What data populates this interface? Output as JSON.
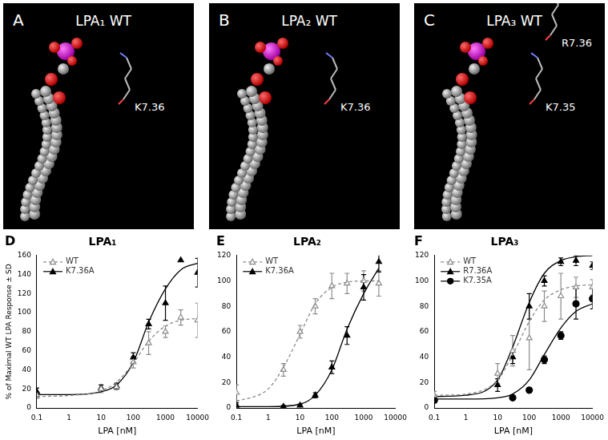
{
  "panels": [
    {
      "letter": "A",
      "title": "LPA₁ WT",
      "residues": [
        "K7.36"
      ]
    },
    {
      "letter": "B",
      "title": "LPA₂ WT",
      "residues": [
        "K7.36"
      ]
    },
    {
      "letter": "C",
      "title": "LPA₃ WT",
      "residues": [
        "K7.35",
        "R7.36"
      ]
    }
  ],
  "chart_data": [
    {
      "type": "line",
      "letter": "D",
      "title": "LPA₁",
      "x_label": "LPA [nM]",
      "y_label": "% of Maximal WT LPA Response ± SD",
      "log": "x",
      "grid": false,
      "legend": "top-left",
      "xlim": [
        0.1,
        10000
      ],
      "xticks": [
        0.1,
        1,
        10,
        100,
        1000,
        10000
      ],
      "ylim": [
        0,
        160
      ],
      "yticks": [
        0,
        20,
        40,
        60,
        80,
        100,
        120,
        140,
        160
      ],
      "series": [
        {
          "name": "WT",
          "color": "#8c8c8c",
          "marker": "triangle-open",
          "line_style": "dashed",
          "x": [
            0.1,
            10,
            30,
            100,
            300,
            1000,
            3000,
            10000
          ],
          "values": [
            13,
            20,
            22,
            48,
            68,
            80,
            95,
            92
          ],
          "error": [
            3,
            4,
            3,
            6,
            12,
            6,
            8,
            18
          ],
          "fit_x": [
            0.1,
            1,
            10,
            30,
            100,
            300,
            1000,
            3000,
            10000
          ],
          "fit": [
            12,
            13,
            18,
            27,
            47,
            70,
            86,
            92,
            94
          ]
        },
        {
          "name": "K7.36A",
          "color": "#000000",
          "marker": "triangle",
          "line_style": "solid",
          "x": [
            0.1,
            10,
            30,
            100,
            300,
            1000,
            3000,
            10000
          ],
          "values": [
            17,
            21,
            23,
            53,
            88,
            110,
            155,
            142
          ],
          "error": [
            4,
            3,
            3,
            5,
            5,
            18,
            0,
            15
          ],
          "fit_x": [
            0.1,
            1,
            10,
            30,
            100,
            300,
            1000,
            3000,
            10000
          ],
          "fit": [
            14,
            14,
            17,
            24,
            48,
            90,
            125,
            145,
            152
          ]
        }
      ]
    },
    {
      "type": "line",
      "letter": "E",
      "title": "LPA₂",
      "x_label": "LPA [nM]",
      "log": "x",
      "grid": false,
      "legend": "top-left",
      "xlim": [
        0.1,
        10000
      ],
      "xticks": [
        0.1,
        1,
        10,
        100,
        1000,
        10000
      ],
      "ylim": [
        0,
        120
      ],
      "yticks": [
        0,
        20,
        40,
        60,
        80,
        100,
        120
      ],
      "series": [
        {
          "name": "WT",
          "color": "#8c8c8c",
          "marker": "triangle-open",
          "line_style": "dashed",
          "x": [
            0.1,
            3,
            10,
            30,
            100,
            300,
            1000,
            3000
          ],
          "values": [
            12,
            30,
            60,
            80,
            96,
            98,
            100,
            98
          ],
          "error": [
            6,
            5,
            5,
            6,
            10,
            8,
            8,
            10
          ],
          "fit_x": [
            0.1,
            1,
            3,
            10,
            30,
            100,
            300,
            1000,
            3000
          ],
          "fit": [
            5,
            15,
            32,
            58,
            82,
            95,
            99,
            100,
            100
          ]
        },
        {
          "name": "K7.36A",
          "color": "#000000",
          "marker": "triangle",
          "line_style": "solid",
          "x": [
            0.1,
            3,
            10,
            30,
            100,
            300,
            1000,
            3000
          ],
          "values": [
            2,
            1,
            2,
            10,
            32,
            57,
            95,
            115
          ],
          "error": [
            2,
            1,
            1,
            2,
            5,
            7,
            10,
            8
          ],
          "fit_x": [
            0.1,
            1,
            10,
            30,
            100,
            300,
            1000,
            3000
          ],
          "fit": [
            1,
            1,
            3,
            10,
            30,
            62,
            90,
            110
          ]
        }
      ]
    },
    {
      "type": "line",
      "letter": "F",
      "title": "LPA₃",
      "x_label": "LPA [nM]",
      "log": "x",
      "grid": false,
      "legend": "top-left",
      "xlim": [
        0.1,
        10000
      ],
      "xticks": [
        0.1,
        1,
        10,
        100,
        1000,
        10000
      ],
      "ylim": [
        0,
        120
      ],
      "yticks": [
        0,
        20,
        40,
        60,
        80,
        100,
        120
      ],
      "series": [
        {
          "name": "WT",
          "color": "#8c8c8c",
          "marker": "triangle-open",
          "line_style": "dashed",
          "x": [
            0.1,
            10,
            30,
            100,
            300,
            1000,
            3000,
            10000
          ],
          "values": [
            10,
            27,
            45,
            55,
            80,
            88,
            95,
            95
          ],
          "error": [
            3,
            8,
            12,
            25,
            12,
            18,
            8,
            6
          ],
          "fit_x": [
            0.1,
            1,
            10,
            30,
            100,
            300,
            1000,
            3000,
            10000
          ],
          "fit": [
            10,
            11,
            22,
            42,
            68,
            85,
            93,
            96,
            97
          ]
        },
        {
          "name": "R7.36A",
          "color": "#000000",
          "marker": "triangle",
          "line_style": "solid",
          "x": [
            0.1,
            10,
            30,
            100,
            300,
            1000,
            3000,
            10000
          ],
          "values": [
            8,
            18,
            40,
            80,
            100,
            115,
            116,
            112
          ],
          "error": [
            2,
            5,
            5,
            10,
            4,
            3,
            4,
            3
          ],
          "fit_x": [
            0.1,
            1,
            10,
            30,
            100,
            300,
            1000,
            3000,
            10000
          ],
          "fit": [
            9,
            10,
            22,
            48,
            83,
            106,
            116,
            119,
            120
          ]
        },
        {
          "name": "K7.35A",
          "color": "#000000",
          "marker": "circle",
          "line_style": "solid",
          "x": [
            0.1,
            30,
            100,
            300,
            1000,
            3000,
            10000
          ],
          "values": [
            6,
            8,
            14,
            38,
            57,
            82,
            86
          ],
          "error": [
            1,
            1,
            2,
            3,
            3,
            12,
            8
          ],
          "fit_x": [
            0.1,
            1,
            10,
            30,
            100,
            300,
            1000,
            3000,
            10000
          ],
          "fit": [
            7,
            7,
            8,
            11,
            22,
            42,
            63,
            76,
            82
          ]
        }
      ]
    }
  ]
}
